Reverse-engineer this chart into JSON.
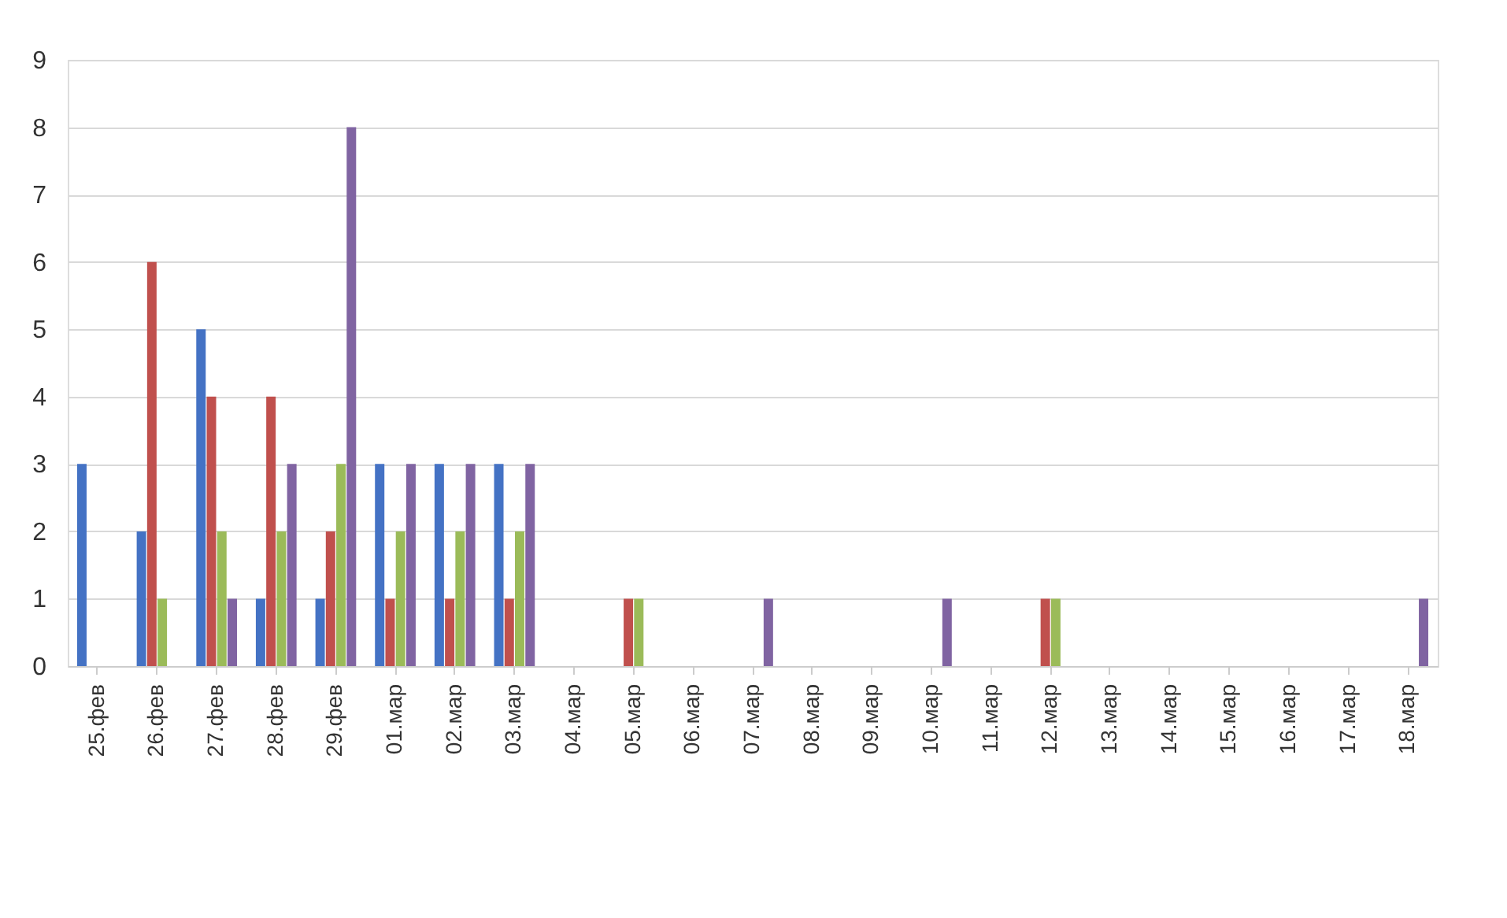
{
  "chart_data": {
    "type": "bar",
    "categories": [
      "25.фев",
      "26.фев",
      "27.фев",
      "28.фев",
      "29.фев",
      "01.мар",
      "02.мар",
      "03.мар",
      "04.мар",
      "05.мар",
      "06.мар",
      "07.мар",
      "08.мар",
      "09.мар",
      "10.мар",
      "11.мар",
      "12.мар",
      "13.мар",
      "14.мар",
      "15.мар",
      "16.мар",
      "17.мар",
      "18.мар"
    ],
    "series": [
      {
        "color": "#4472c4",
        "values": [
          3,
          2,
          5,
          1,
          1,
          3,
          3,
          3,
          0,
          0,
          0,
          0,
          0,
          0,
          0,
          0,
          0,
          0,
          0,
          0,
          0,
          0,
          0
        ]
      },
      {
        "color": "#c0504d",
        "values": [
          0,
          6,
          4,
          4,
          2,
          1,
          1,
          1,
          0,
          1,
          0,
          0,
          0,
          0,
          0,
          0,
          1,
          0,
          0,
          0,
          0,
          0,
          0
        ]
      },
      {
        "color": "#9bbb59",
        "values": [
          0,
          1,
          2,
          2,
          3,
          2,
          2,
          2,
          0,
          1,
          0,
          0,
          0,
          0,
          0,
          0,
          1,
          0,
          0,
          0,
          0,
          0,
          0
        ]
      },
      {
        "color": "#8064a2",
        "values": [
          0,
          0,
          1,
          3,
          8,
          3,
          3,
          3,
          0,
          0,
          0,
          1,
          0,
          0,
          1,
          0,
          0,
          0,
          0,
          0,
          0,
          0,
          1
        ]
      }
    ],
    "ylim": [
      0,
      9
    ],
    "yticks": [
      0,
      1,
      2,
      3,
      4,
      5,
      6,
      7,
      8,
      9
    ],
    "grid": "y",
    "legend": false
  }
}
